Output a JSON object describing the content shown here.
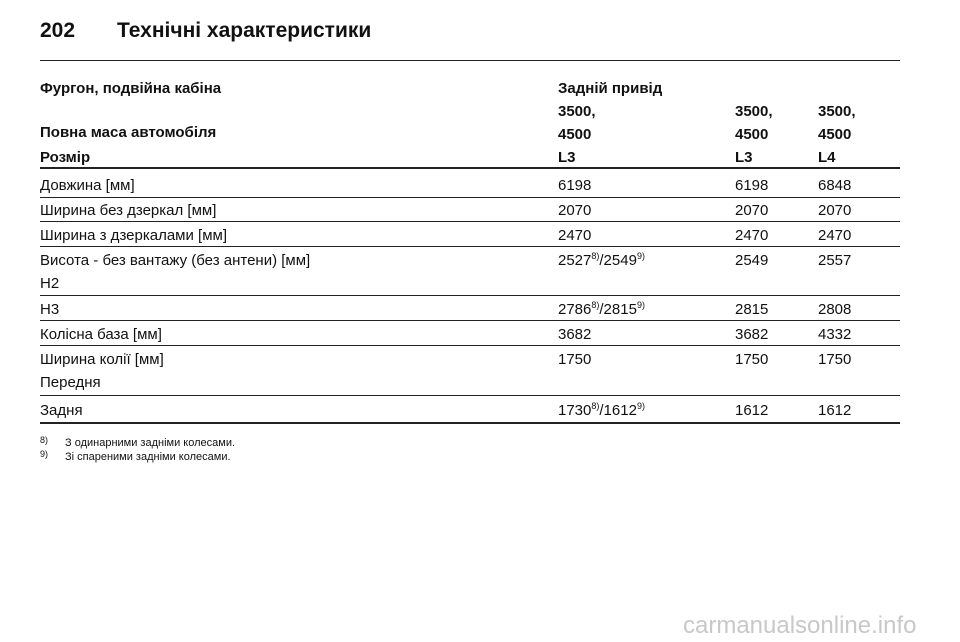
{
  "header": {
    "page": "202",
    "title": "Технічні характеристики"
  },
  "table": {
    "head": [
      [
        "Фургон, подвійна кабіна",
        "Задній привід"
      ],
      [
        "Повна маса автомобіля",
        {
          "lines": [
            "3500,",
            "4500"
          ]
        },
        {
          "lines": [
            "3500,",
            "4500"
          ]
        },
        {
          "lines": [
            "3500,",
            "4500"
          ]
        }
      ],
      [
        "Розмір",
        "L3",
        "L3",
        "L4"
      ]
    ],
    "rows": [
      [
        "Довжина [мм]",
        "6198",
        "6198",
        "6848"
      ],
      [
        "Ширина без дзеркал [мм]",
        "2070",
        "2070",
        "2070"
      ],
      [
        "Ширина з дзеркалами [мм]",
        "2470",
        "2470",
        "2470"
      ],
      [
        {
          "lines": [
            "Висота - без вантажу (без антени) [мм]",
            "H2"
          ]
        },
        {
          "parts": [
            {
              "text": "2527",
              "sup": "8)"
            },
            {
              "text": "/2549",
              "sup": "9)"
            }
          ]
        },
        "2549",
        "2557"
      ],
      [
        "H3",
        {
          "parts": [
            {
              "text": "2786",
              "sup": "8)"
            },
            {
              "text": "/2815",
              "sup": "9)"
            }
          ]
        },
        "2815",
        "2808"
      ],
      [
        "Колісна база [мм]",
        "3682",
        "3682",
        "4332"
      ],
      [
        {
          "lines": [
            "Ширина колії [мм]",
            "Передня"
          ]
        },
        "1750",
        "1750",
        "1750"
      ],
      [
        "Задня",
        {
          "parts": [
            {
              "text": "1730",
              "sup": "8)"
            },
            {
              "text": "/1612",
              "sup": "9)"
            }
          ]
        },
        "1612",
        "1612"
      ]
    ]
  },
  "footnotes": [
    {
      "mark": "8)",
      "text": "З одинарними задніми колесами."
    },
    {
      "mark": "9)",
      "text": "Зі спареними задніми колесами."
    }
  ],
  "watermark": "carmanualsonline.info"
}
